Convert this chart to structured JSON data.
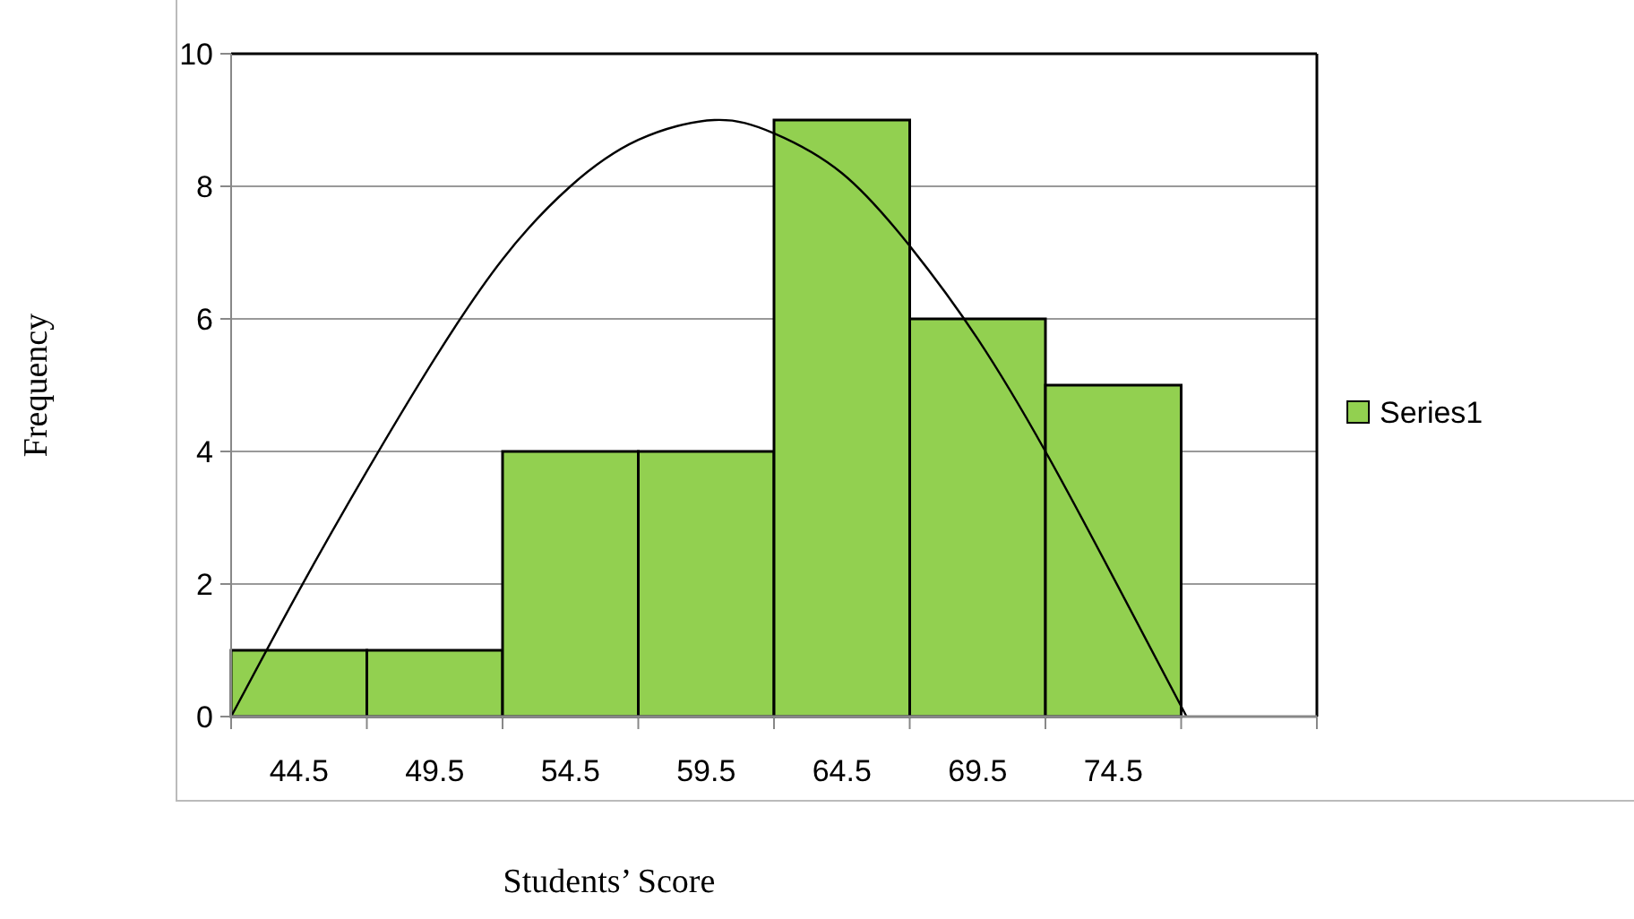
{
  "chart_data": {
    "type": "histogram",
    "xlabel": "Students’ Score",
    "ylabel": "Frequency",
    "bins": [
      42,
      47,
      52,
      57,
      62,
      67,
      72,
      77
    ],
    "series": [
      {
        "name": "Series1",
        "color": "#92d050",
        "values": [
          1,
          1,
          4,
          4,
          9,
          6,
          5
        ]
      },
      {
        "type": "line",
        "color": "#000000",
        "x": [
          42,
          44.5,
          47,
          49.5,
          52,
          54.5,
          57,
          59.8,
          62,
          64.5,
          67,
          69.5,
          72,
          74.5,
          77.2
        ],
        "values": [
          0,
          1.9,
          3.7,
          5.4,
          6.9,
          8.0,
          8.7,
          9.0,
          8.8,
          8.2,
          7.1,
          5.7,
          4.0,
          2.1,
          0
        ]
      }
    ],
    "xlim": [
      42,
      82
    ],
    "xticks": [
      {
        "value": 42,
        "label": null
      },
      {
        "value": 44.5,
        "label": "44.5"
      },
      {
        "value": 47,
        "label": null
      },
      {
        "value": 49.5,
        "label": "49.5"
      },
      {
        "value": 52,
        "label": null
      },
      {
        "value": 54.5,
        "label": "54.5"
      },
      {
        "value": 57,
        "label": null
      },
      {
        "value": 59.5,
        "label": "59.5"
      },
      {
        "value": 62,
        "label": null
      },
      {
        "value": 64.5,
        "label": "64.5"
      },
      {
        "value": 67,
        "label": null
      },
      {
        "value": 69.5,
        "label": "69.5"
      },
      {
        "value": 72,
        "label": null
      },
      {
        "value": 74.5,
        "label": "74.5"
      },
      {
        "value": 77,
        "label": null
      },
      {
        "value": 82,
        "label": null
      }
    ],
    "ylim": [
      0,
      10
    ],
    "yticks": [
      0,
      2,
      4,
      6,
      8,
      10
    ],
    "grid": "y",
    "legend": "right",
    "marker": "none",
    "line_style": "solid"
  }
}
